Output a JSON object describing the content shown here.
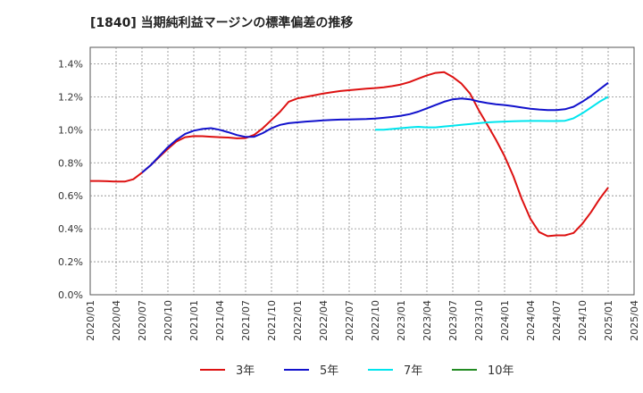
{
  "chart_data": {
    "type": "line",
    "title": "[1840]  当期純利益マージンの標準偏差の推移",
    "xlabel": "",
    "ylabel": "",
    "ylim": [
      0,
      1.5
    ],
    "y_ticks": [
      0,
      0.2,
      0.4,
      0.6,
      0.8,
      1.0,
      1.2,
      1.4
    ],
    "y_tick_labels": [
      "0.0%",
      "0.2%",
      "0.4%",
      "0.6%",
      "0.8%",
      "1.0%",
      "1.2%",
      "1.4%"
    ],
    "x_tick_labels": [
      "2020/01",
      "2020/04",
      "2020/07",
      "2020/10",
      "2021/01",
      "2021/04",
      "2021/07",
      "2021/10",
      "2022/01",
      "2022/04",
      "2022/07",
      "2022/10",
      "2023/01",
      "2023/04",
      "2023/07",
      "2023/10",
      "2024/01",
      "2024/04",
      "2024/07",
      "2024/10",
      "2025/01",
      "2025/04"
    ],
    "grid": true,
    "legend_position": "bottom",
    "series": [
      {
        "name": "3年",
        "color": "#dd1111",
        "points": [
          [
            "2020/01",
            0.69
          ],
          [
            "2020/02",
            0.69
          ],
          [
            "2020/03",
            0.688
          ],
          [
            "2020/04",
            0.686
          ],
          [
            "2020/05",
            0.686
          ],
          [
            "2020/06",
            0.7
          ],
          [
            "2020/07",
            0.74
          ],
          [
            "2020/08",
            0.785
          ],
          [
            "2020/09",
            0.835
          ],
          [
            "2020/10",
            0.885
          ],
          [
            "2020/11",
            0.93
          ],
          [
            "2020/12",
            0.955
          ],
          [
            "2021/01",
            0.962
          ],
          [
            "2021/02",
            0.961
          ],
          [
            "2021/03",
            0.958
          ],
          [
            "2021/04",
            0.955
          ],
          [
            "2021/05",
            0.953
          ],
          [
            "2021/06",
            0.948
          ],
          [
            "2021/07",
            0.95
          ],
          [
            "2021/08",
            0.97
          ],
          [
            "2021/09",
            1.01
          ],
          [
            "2021/10",
            1.06
          ],
          [
            "2021/11",
            1.11
          ],
          [
            "2021/12",
            1.17
          ],
          [
            "2022/01",
            1.19
          ],
          [
            "2022/02",
            1.2
          ],
          [
            "2022/03",
            1.21
          ],
          [
            "2022/04",
            1.22
          ],
          [
            "2022/05",
            1.228
          ],
          [
            "2022/06",
            1.235
          ],
          [
            "2022/07",
            1.24
          ],
          [
            "2022/08",
            1.245
          ],
          [
            "2022/09",
            1.25
          ],
          [
            "2022/10",
            1.253
          ],
          [
            "2022/11",
            1.258
          ],
          [
            "2022/12",
            1.265
          ],
          [
            "2023/01",
            1.275
          ],
          [
            "2023/02",
            1.29
          ],
          [
            "2023/03",
            1.31
          ],
          [
            "2023/04",
            1.33
          ],
          [
            "2023/05",
            1.345
          ],
          [
            "2023/06",
            1.35
          ],
          [
            "2023/07",
            1.32
          ],
          [
            "2023/08",
            1.28
          ],
          [
            "2023/09",
            1.22
          ],
          [
            "2023/10",
            1.12
          ],
          [
            "2023/11",
            1.03
          ],
          [
            "2023/12",
            0.94
          ],
          [
            "2024/01",
            0.84
          ],
          [
            "2024/02",
            0.72
          ],
          [
            "2024/03",
            0.58
          ],
          [
            "2024/04",
            0.46
          ],
          [
            "2024/05",
            0.38
          ],
          [
            "2024/06",
            0.355
          ],
          [
            "2024/07",
            0.36
          ],
          [
            "2024/08",
            0.36
          ],
          [
            "2024/09",
            0.375
          ],
          [
            "2024/10",
            0.43
          ],
          [
            "2024/11",
            0.5
          ],
          [
            "2024/12",
            0.58
          ],
          [
            "2025/01",
            0.65
          ]
        ]
      },
      {
        "name": "5年",
        "color": "#1111cc",
        "points": [
          [
            "2020/07",
            0.74
          ],
          [
            "2020/08",
            0.785
          ],
          [
            "2020/09",
            0.84
          ],
          [
            "2020/10",
            0.895
          ],
          [
            "2020/11",
            0.94
          ],
          [
            "2020/12",
            0.975
          ],
          [
            "2021/01",
            0.995
          ],
          [
            "2021/02",
            1.005
          ],
          [
            "2021/03",
            1.01
          ],
          [
            "2021/04",
            1.0
          ],
          [
            "2021/05",
            0.985
          ],
          [
            "2021/06",
            0.968
          ],
          [
            "2021/07",
            0.957
          ],
          [
            "2021/08",
            0.958
          ],
          [
            "2021/09",
            0.98
          ],
          [
            "2021/10",
            1.01
          ],
          [
            "2021/11",
            1.03
          ],
          [
            "2021/12",
            1.04
          ],
          [
            "2022/01",
            1.045
          ],
          [
            "2022/02",
            1.05
          ],
          [
            "2022/03",
            1.053
          ],
          [
            "2022/04",
            1.057
          ],
          [
            "2022/05",
            1.06
          ],
          [
            "2022/06",
            1.062
          ],
          [
            "2022/07",
            1.063
          ],
          [
            "2022/08",
            1.064
          ],
          [
            "2022/09",
            1.065
          ],
          [
            "2022/10",
            1.068
          ],
          [
            "2022/11",
            1.073
          ],
          [
            "2022/12",
            1.078
          ],
          [
            "2023/01",
            1.085
          ],
          [
            "2023/02",
            1.095
          ],
          [
            "2023/03",
            1.11
          ],
          [
            "2023/04",
            1.13
          ],
          [
            "2023/05",
            1.15
          ],
          [
            "2023/06",
            1.17
          ],
          [
            "2023/07",
            1.185
          ],
          [
            "2023/08",
            1.19
          ],
          [
            "2023/09",
            1.185
          ],
          [
            "2023/10",
            1.172
          ],
          [
            "2023/11",
            1.162
          ],
          [
            "2023/12",
            1.155
          ],
          [
            "2024/01",
            1.15
          ],
          [
            "2024/02",
            1.143
          ],
          [
            "2024/03",
            1.135
          ],
          [
            "2024/04",
            1.128
          ],
          [
            "2024/05",
            1.123
          ],
          [
            "2024/06",
            1.12
          ],
          [
            "2024/07",
            1.12
          ],
          [
            "2024/08",
            1.125
          ],
          [
            "2024/09",
            1.14
          ],
          [
            "2024/10",
            1.17
          ],
          [
            "2024/11",
            1.205
          ],
          [
            "2024/12",
            1.245
          ],
          [
            "2025/01",
            1.285
          ]
        ]
      },
      {
        "name": "7年",
        "color": "#00e5ee",
        "points": [
          [
            "2022/10",
            1.0
          ],
          [
            "2022/11",
            1.0
          ],
          [
            "2022/12",
            1.005
          ],
          [
            "2023/01",
            1.01
          ],
          [
            "2023/02",
            1.015
          ],
          [
            "2023/03",
            1.018
          ],
          [
            "2023/04",
            1.015
          ],
          [
            "2023/05",
            1.015
          ],
          [
            "2023/06",
            1.02
          ],
          [
            "2023/07",
            1.025
          ],
          [
            "2023/08",
            1.03
          ],
          [
            "2023/09",
            1.035
          ],
          [
            "2023/10",
            1.04
          ],
          [
            "2023/11",
            1.045
          ],
          [
            "2023/12",
            1.048
          ],
          [
            "2024/01",
            1.05
          ],
          [
            "2024/02",
            1.052
          ],
          [
            "2024/03",
            1.053
          ],
          [
            "2024/04",
            1.054
          ],
          [
            "2024/05",
            1.054
          ],
          [
            "2024/06",
            1.053
          ],
          [
            "2024/07",
            1.053
          ],
          [
            "2024/08",
            1.055
          ],
          [
            "2024/09",
            1.07
          ],
          [
            "2024/10",
            1.1
          ],
          [
            "2024/11",
            1.135
          ],
          [
            "2024/12",
            1.17
          ],
          [
            "2025/01",
            1.2
          ]
        ]
      },
      {
        "name": "10年",
        "color": "#228b22",
        "points": []
      }
    ]
  }
}
